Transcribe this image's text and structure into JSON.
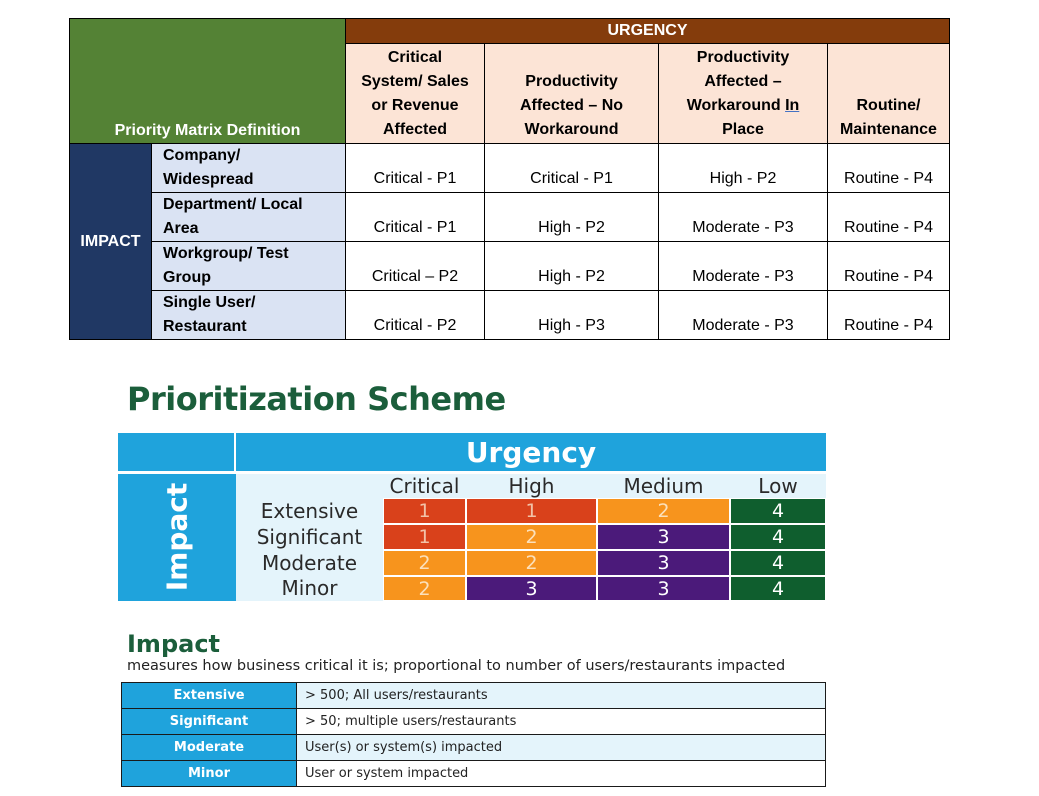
{
  "matrix": {
    "urgency_header": "URGENCY",
    "corner_label": "Priority Matrix Definition",
    "impact_label": "IMPACT",
    "columns": [
      {
        "lines": [
          "Critical",
          "System/ Sales",
          "or Revenue",
          "Affected"
        ]
      },
      {
        "lines": [
          "Productivity",
          "Affected – No",
          "Workaround"
        ]
      },
      {
        "lines": [
          "Productivity",
          "Affected –",
          "Workaround In",
          "Place"
        ]
      },
      {
        "lines": [
          "Routine/",
          "Maintenance"
        ]
      }
    ],
    "rows": [
      {
        "label_lines": [
          "Company/",
          "Widespread"
        ],
        "cells": [
          "Critical - P1",
          "Critical - P1",
          "High - P2",
          "Routine - P4"
        ]
      },
      {
        "label_lines": [
          "Department/ Local",
          "Area"
        ],
        "cells": [
          "Critical - P1",
          "High - P2",
          "Moderate - P3",
          "Routine - P4"
        ]
      },
      {
        "label_lines": [
          "Workgroup/ Test",
          "Group"
        ],
        "cells": [
          "Critical – P2",
          "High - P2",
          "Moderate - P3",
          "Routine - P4"
        ]
      },
      {
        "label_lines": [
          "Single User/",
          "Restaurant"
        ],
        "cells": [
          "Critical - P2",
          "High - P3",
          "Moderate - P3",
          "Routine - P4"
        ]
      }
    ]
  },
  "scheme": {
    "title": "Prioritization Scheme",
    "urgency_label": "Urgency",
    "impact_label": "Impact",
    "columns": [
      "Critical",
      "High",
      "Medium",
      "Low"
    ],
    "rows": [
      {
        "label": "Extensive",
        "values": [
          "1",
          "1",
          "2",
          "4"
        ]
      },
      {
        "label": "Significant",
        "values": [
          "1",
          "2",
          "3",
          "4"
        ]
      },
      {
        "label": "Moderate",
        "values": [
          "2",
          "2",
          "3",
          "4"
        ]
      },
      {
        "label": "Minor",
        "values": [
          "2",
          "3",
          "3",
          "4"
        ]
      }
    ],
    "colors": {
      "header_blue": "#1fa3dc",
      "light_blue": "#e4f4fb",
      "priority_1": "#d9411b",
      "priority_2": "#f7941d",
      "priority_3": "#4b1a7a",
      "priority_4": "#0f5e2e"
    }
  },
  "impact_section": {
    "title": "Impact",
    "subtitle": "measures how business critical it is; proportional to number of users/restaurants impacted",
    "rows": [
      {
        "label": "Extensive",
        "desc": "> 500; All users/restaurants"
      },
      {
        "label": "Significant",
        "desc": "> 50; multiple users/restaurants"
      },
      {
        "label": "Moderate",
        "desc": "User(s) or system(s) impacted"
      },
      {
        "label": "Minor",
        "desc": "User or system impacted"
      }
    ]
  }
}
